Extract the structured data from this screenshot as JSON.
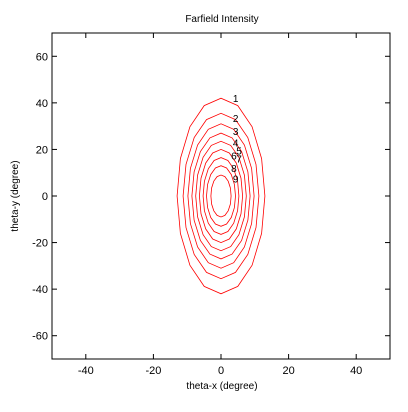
{
  "chart_data": {
    "type": "contour",
    "title": "Farfield Intensity",
    "xlabel": "theta-x (degree)",
    "ylabel": "theta-y (degree)",
    "xlim": [
      -50,
      50
    ],
    "ylim": [
      -70,
      70
    ],
    "x_ticks": [
      -40,
      -20,
      0,
      20,
      40
    ],
    "y_ticks": [
      -60,
      -40,
      -20,
      0,
      20,
      40,
      60
    ],
    "x_tick_labels": [
      "-40",
      "-20",
      "0",
      "20",
      "40"
    ],
    "y_tick_labels": [
      "-60",
      "-40",
      "-20",
      "0",
      "20",
      "40",
      "60"
    ],
    "grid": false,
    "legend": "none",
    "center": [
      0,
      0
    ],
    "line_color": "#ff0000",
    "contours": [
      {
        "level": "1",
        "half_width_x": 13.0,
        "half_height_y": 42.0
      },
      {
        "level": "2",
        "half_width_x": 11.2,
        "half_height_y": 35.5
      },
      {
        "level": "3",
        "half_width_x": 9.8,
        "half_height_y": 31.0
      },
      {
        "level": "4",
        "half_width_x": 8.6,
        "half_height_y": 27.0
      },
      {
        "level": "5",
        "half_width_x": 7.5,
        "half_height_y": 23.5
      },
      {
        "level": "6",
        "half_width_x": 6.4,
        "half_height_y": 20.0
      },
      {
        "level": "7",
        "half_width_x": 5.3,
        "half_height_y": 16.5
      },
      {
        "level": "8",
        "half_width_x": 4.3,
        "half_height_y": 13.0
      },
      {
        "level": "9",
        "half_width_x": 3.0,
        "half_height_y": 9.0
      }
    ],
    "label_positions": [
      {
        "label": "1",
        "x": 3.5,
        "y": 42.0
      },
      {
        "label": "2",
        "x": 3.5,
        "y": 33.5
      },
      {
        "label": "3",
        "x": 3.5,
        "y": 28.0
      },
      {
        "label": "4",
        "x": 3.5,
        "y": 23.0
      },
      {
        "label": "5",
        "x": 4.5,
        "y": 19.5
      },
      {
        "label": "6",
        "x": 3.0,
        "y": 17.5
      },
      {
        "label": "7",
        "x": 4.5,
        "y": 16.0
      },
      {
        "label": "8",
        "x": 3.0,
        "y": 12.0
      },
      {
        "label": "9",
        "x": 3.5,
        "y": 7.5
      }
    ]
  }
}
